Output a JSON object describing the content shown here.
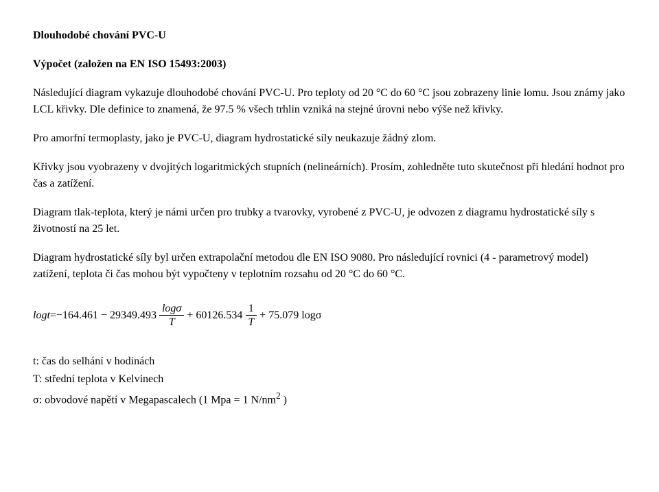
{
  "title": "Dlouhodobé chování PVC-U",
  "subtitle": "Výpočet (založen na EN ISO 15493:2003)",
  "p1": "Následující diagram vykazuje dlouhodobé chování PVC-U. Pro teploty od 20 °C do 60 °C jsou zobrazeny linie lomu. Jsou známy jako LCL křivky. Dle definice to znamená, že 97.5 % všech trhlin vzniká na stejné úrovni nebo výše než křivky.",
  "p2": "Pro amorfní termoplasty, jako je PVC-U, diagram hydrostatické síly neukazuje žádný zlom.",
  "p3": "Křivky jsou vyobrazeny v dvojitých logaritmických stupních (nelineárních). Prosím, zohledněte tuto skutečnost při hledání hodnot pro čas a zatížení.",
  "p4": "Diagram tlak-teplota, který je námi určen pro trubky a tvarovky, vyrobené z PVC-U, je odvozen z diagramu hydrostatické síly s životností na 25 let.",
  "p5": "Diagram hydrostatické síly byl určen extrapolační metodou dle EN ISO 9080. Pro následující rovnici (4 - parametrový model) zatížení, teplota či čas mohou být vypočteny v teplotním rozsahu od 20 °C do 60 °C.",
  "formula": {
    "lhs": "logt",
    "eq": " = ",
    "c1": "−164.461 − 29349.493 ",
    "frac1_num": "logσ",
    "frac1_den": "T",
    "c2": " + 60126.534 ",
    "frac2_num": "1",
    "frac2_den": "T",
    "c3": " + 75.079 logσ"
  },
  "defs": {
    "d1": "t: čas do selhání v hodinách",
    "d2": "T: střední teplota v Kelvinech",
    "d3_pre": "σ: obvodové napětí v Megapascalech (1 Mpa = 1 N/nm",
    "d3_sup": "2",
    "d3_post": " )"
  }
}
